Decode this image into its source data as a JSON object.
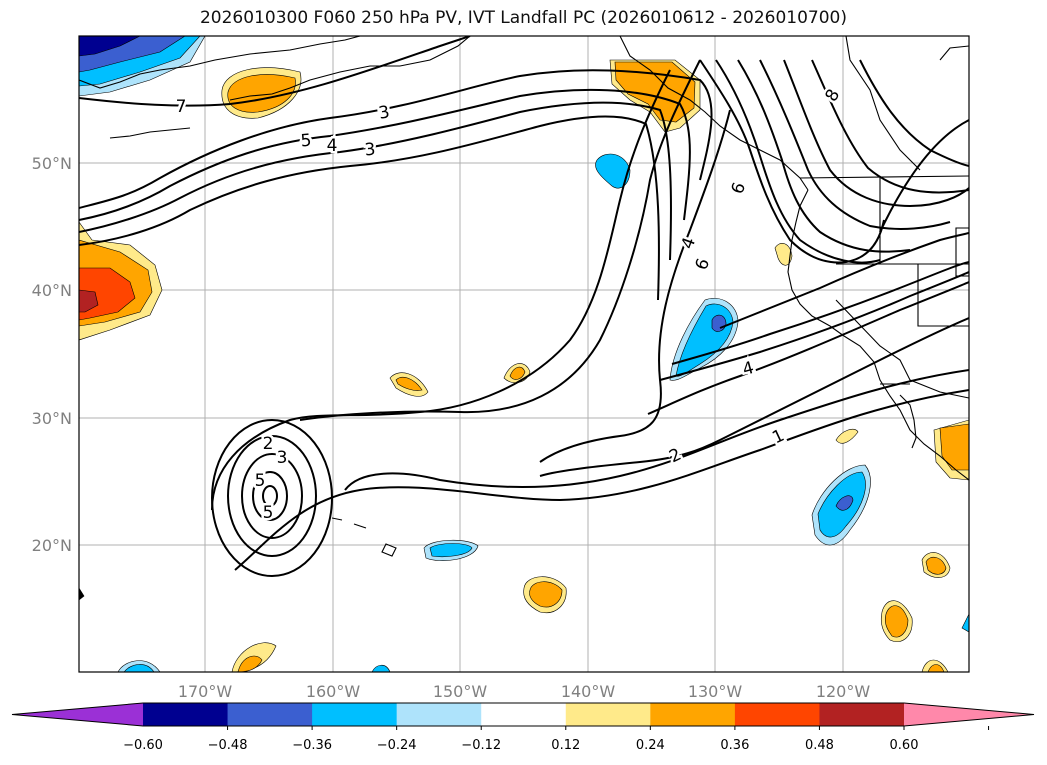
{
  "title": "2026010300 F060 250 hPa PV, IVT Landfall PC (2026010612 - 2026010700)",
  "lat_labels": [
    "50°N",
    "40°N",
    "30°N",
    "20°N"
  ],
  "lon_labels": [
    "170°W",
    "160°W",
    "150°W",
    "140°W",
    "130°W",
    "120°W"
  ],
  "contour_labels": [
    "1",
    "2",
    "2",
    "3",
    "3",
    "3",
    "4",
    "4",
    "4",
    "5",
    "5",
    "5",
    "6",
    "6",
    "7",
    "8"
  ],
  "colorbar": {
    "ticks": [
      "−0.60",
      "−0.48",
      "−0.36",
      "−0.24",
      "−0.12",
      "0.12",
      "0.24",
      "0.36",
      "0.48",
      "0.60"
    ],
    "colors": [
      "#9b30d6",
      "#000090",
      "#3b5fd0",
      "#00bfff",
      "#aee3fb",
      "#ffffff",
      "#ffea8a",
      "#ffa500",
      "#ff4500",
      "#b22222",
      "#ff88aa"
    ]
  }
}
